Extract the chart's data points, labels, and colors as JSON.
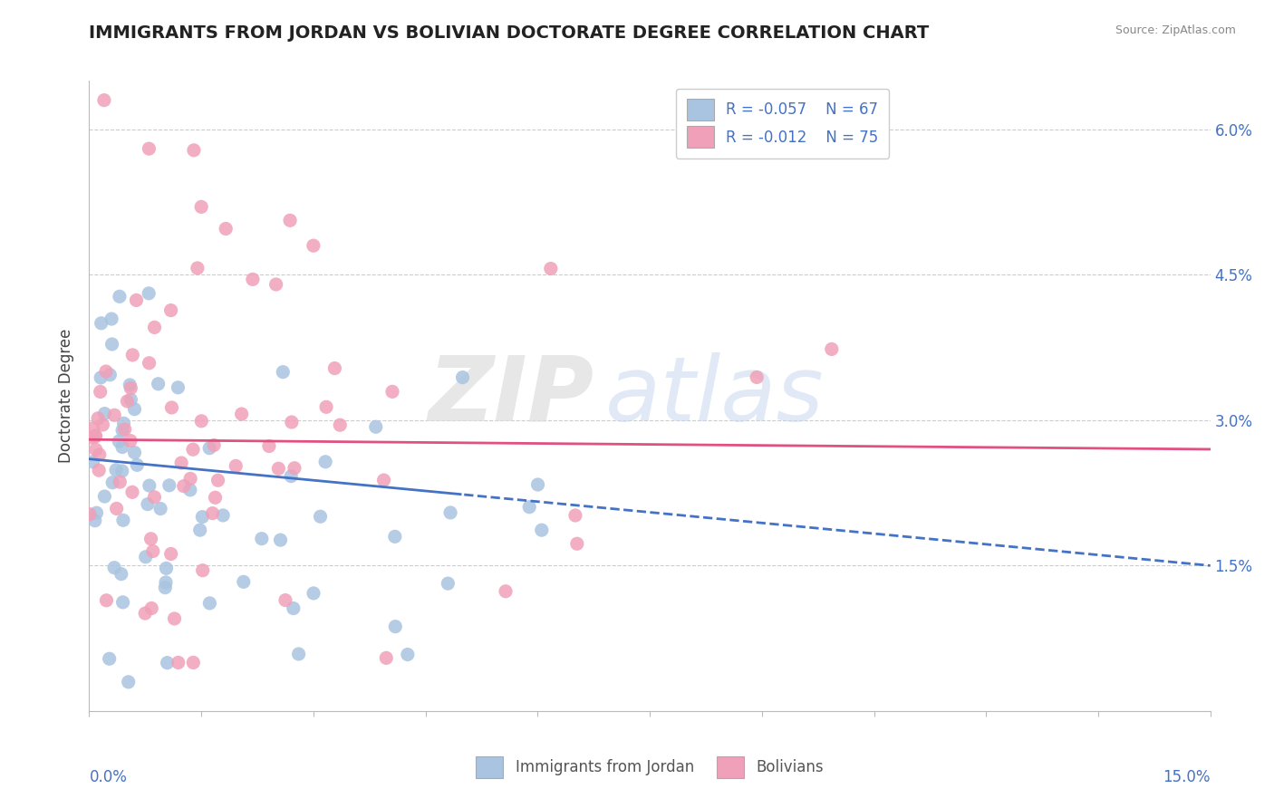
{
  "title": "IMMIGRANTS FROM JORDAN VS BOLIVIAN DOCTORATE DEGREE CORRELATION CHART",
  "source": "Source: ZipAtlas.com",
  "ylabel": "Doctorate Degree",
  "right_yticks": [
    0.015,
    0.03,
    0.045,
    0.06
  ],
  "right_yticklabels": [
    "1.5%",
    "3.0%",
    "4.5%",
    "6.0%"
  ],
  "xlim": [
    0.0,
    0.15
  ],
  "ylim": [
    -0.005,
    0.068
  ],
  "plot_ylim": [
    0.0,
    0.065
  ],
  "color_blue": "#a8c4e0",
  "color_pink": "#f0a0b8",
  "color_blue_line": "#4472c4",
  "color_pink_line": "#e05080",
  "color_blue_text": "#4472c4",
  "blue_trend_start_y": 0.026,
  "blue_trend_end_y": 0.015,
  "pink_trend_start_y": 0.028,
  "pink_trend_end_y": 0.027
}
